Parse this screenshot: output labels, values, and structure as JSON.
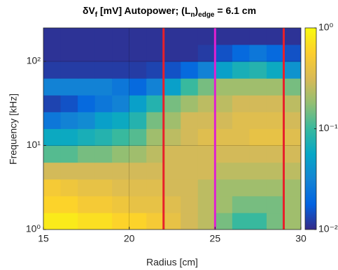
{
  "chart_data": {
    "type": "heatmap",
    "title": [
      {
        "text": "δV",
        "sub": false
      },
      {
        "text": "f",
        "sub": true
      },
      {
        "text": " [mV] Autopower; (L",
        "sub": false
      },
      {
        "text": "n",
        "sub": true
      },
      {
        "text": ")",
        "sub": false
      },
      {
        "text": "edge",
        "sub": true
      },
      {
        "text": " = 6.1 cm",
        "sub": false
      }
    ],
    "x_label": "Radius [cm]",
    "y_label": "Frequency [kHz]",
    "xlim": [
      15,
      30
    ],
    "xticks": [
      15,
      20,
      25,
      30
    ],
    "ylim": [
      1,
      250
    ],
    "yticks": [
      {
        "value": 1,
        "label": "10⁰"
      },
      {
        "value": 10,
        "label": "10¹"
      },
      {
        "value": 100,
        "label": "10²"
      }
    ],
    "y_scale": "log",
    "grid": true,
    "colormap": "parula",
    "zlim": [
      0.01,
      1
    ],
    "zticks": [
      {
        "value": 0.01,
        "label": "10⁻²"
      },
      {
        "value": 0.1,
        "label": "10⁻¹"
      },
      {
        "value": 1,
        "label": "10⁰"
      }
    ],
    "x": [
      15.5,
      16.5,
      17.5,
      18.5,
      19.5,
      20.5,
      21.5,
      22.5,
      23.5,
      24.5,
      25.5,
      26.5,
      27.5,
      28.5,
      29.5
    ],
    "y": [
      1.26,
      2,
      3.16,
      5.01,
      7.94,
      12.6,
      20,
      31.6,
      50.1,
      79.4,
      126,
      200
    ],
    "z": [
      [
        0.8,
        0.8,
        0.7,
        0.7,
        0.6,
        0.6,
        0.5,
        0.4,
        0.3,
        0.25,
        0.15,
        0.1,
        0.1,
        0.15,
        0.2
      ],
      [
        0.6,
        0.6,
        0.5,
        0.5,
        0.45,
        0.4,
        0.4,
        0.35,
        0.3,
        0.25,
        0.2,
        0.15,
        0.15,
        0.15,
        0.2
      ],
      [
        0.5,
        0.45,
        0.4,
        0.4,
        0.35,
        0.35,
        0.35,
        0.3,
        0.3,
        0.25,
        0.2,
        0.2,
        0.2,
        0.2,
        0.2
      ],
      [
        0.3,
        0.3,
        0.3,
        0.3,
        0.3,
        0.3,
        0.3,
        0.3,
        0.3,
        0.3,
        0.25,
        0.25,
        0.25,
        0.25,
        0.25
      ],
      [
        0.12,
        0.12,
        0.15,
        0.15,
        0.18,
        0.2,
        0.25,
        0.3,
        0.3,
        0.3,
        0.3,
        0.3,
        0.3,
        0.3,
        0.3
      ],
      [
        0.06,
        0.06,
        0.07,
        0.08,
        0.1,
        0.12,
        0.2,
        0.25,
        0.3,
        0.35,
        0.35,
        0.35,
        0.4,
        0.4,
        0.35
      ],
      [
        0.025,
        0.03,
        0.035,
        0.05,
        0.06,
        0.08,
        0.15,
        0.2,
        0.3,
        0.3,
        0.3,
        0.35,
        0.35,
        0.35,
        0.3
      ],
      [
        0.013,
        0.015,
        0.02,
        0.025,
        0.03,
        0.05,
        0.08,
        0.15,
        0.2,
        0.25,
        0.25,
        0.3,
        0.3,
        0.3,
        0.25
      ],
      [
        0.03,
        0.03,
        0.03,
        0.03,
        0.025,
        0.02,
        0.03,
        0.05,
        0.1,
        0.15,
        0.2,
        0.2,
        0.2,
        0.2,
        0.15
      ],
      [
        0.012,
        0.012,
        0.012,
        0.012,
        0.012,
        0.012,
        0.013,
        0.015,
        0.02,
        0.03,
        0.05,
        0.07,
        0.08,
        0.06,
        0.04
      ],
      [
        0.011,
        0.011,
        0.011,
        0.011,
        0.011,
        0.011,
        0.011,
        0.011,
        0.011,
        0.012,
        0.015,
        0.02,
        0.025,
        0.02,
        0.015
      ],
      [
        0.011,
        0.011,
        0.011,
        0.011,
        0.011,
        0.011,
        0.011,
        0.011,
        0.011,
        0.011,
        0.011,
        0.011,
        0.011,
        0.011,
        0.011
      ]
    ],
    "vlines": [
      {
        "x": 22,
        "color": "#e8202a"
      },
      {
        "x": 25,
        "color": "#e020d0"
      },
      {
        "x": 29,
        "color": "#e8202a"
      }
    ]
  }
}
